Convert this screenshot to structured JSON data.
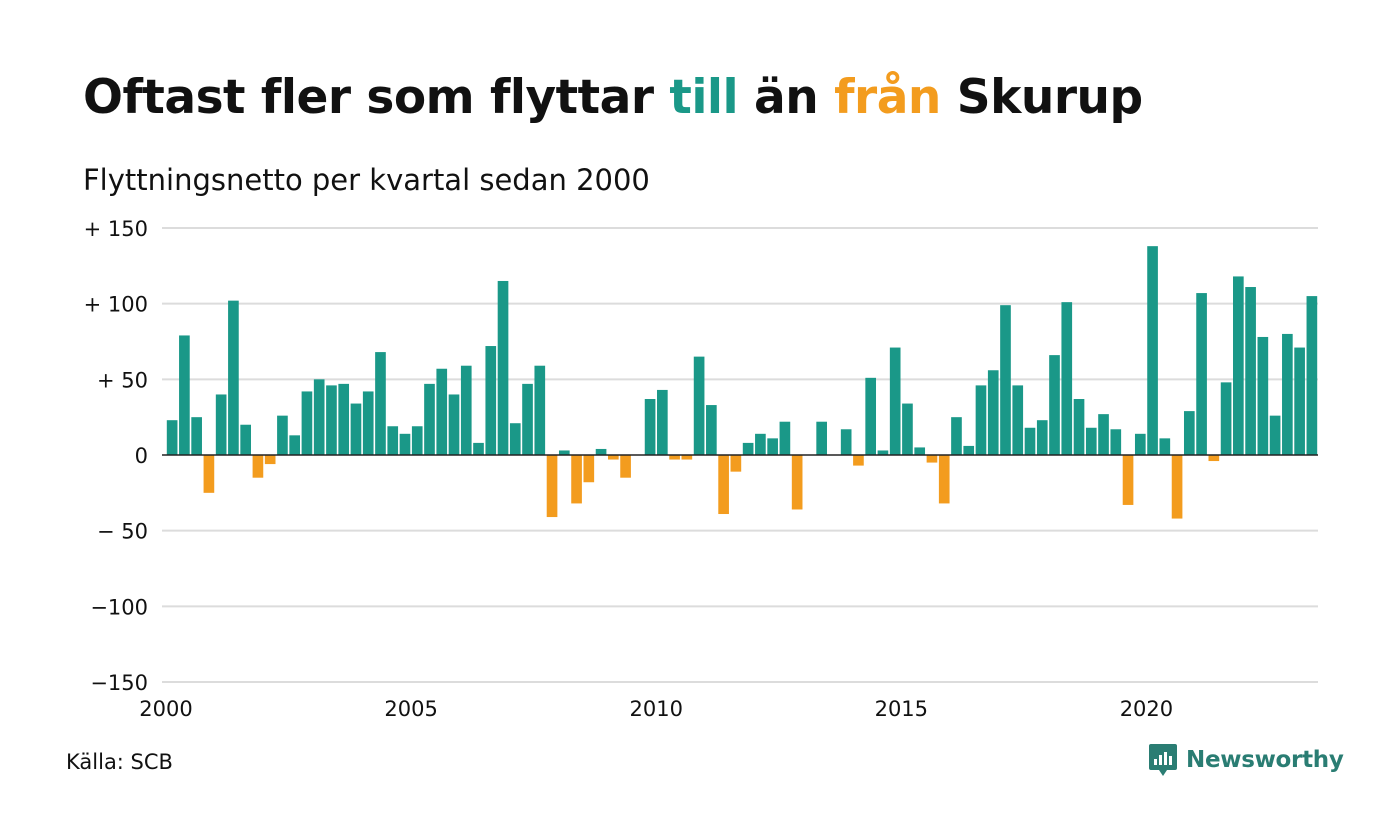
{
  "title": {
    "part1": "Oftast fler som flyttar ",
    "part2": "till",
    "part3": " än ",
    "part4": "från",
    "part5": " Skurup"
  },
  "subtitle": "Flyttningsnetto per kvartal sedan 2000",
  "source": "Källa: SCB",
  "brand": {
    "name": "Newsworthy",
    "icon": "chart-bubble-icon"
  },
  "colors": {
    "positive": "#1a9888",
    "negative": "#f39c1e",
    "grid": "#dcdcdc",
    "zero_line": "#222222",
    "brand": "#2a7d73"
  },
  "chart_data": {
    "type": "bar",
    "title": "Oftast fler som flyttar till än från Skurup",
    "subtitle": "Flyttningsnetto per kvartal sedan 2000",
    "x_start": "2000 Q1",
    "frequency": "quarterly",
    "x_tick_labels": [
      "2000",
      "2005",
      "2010",
      "2015",
      "2020"
    ],
    "y_tick_values": [
      150,
      100,
      50,
      0,
      -50,
      -100,
      -150
    ],
    "y_tick_labels": [
      "+ 150",
      "+ 100",
      "+  50",
      "0",
      "− 50",
      "−100",
      "−150"
    ],
    "ylim": [
      -150,
      150
    ],
    "grid": true,
    "values": [
      23,
      79,
      25,
      -25,
      40,
      102,
      20,
      -15,
      -6,
      26,
      13,
      42,
      50,
      46,
      47,
      34,
      42,
      68,
      19,
      14,
      19,
      47,
      57,
      40,
      59,
      8,
      72,
      115,
      21,
      47,
      59,
      -41,
      3,
      -32,
      -18,
      4,
      -3,
      -15,
      0,
      37,
      43,
      -3,
      -3,
      65,
      33,
      -39,
      -11,
      8,
      14,
      11,
      22,
      -36,
      0,
      22,
      0,
      17,
      -7,
      51,
      3,
      71,
      34,
      5,
      -5,
      -32,
      25,
      6,
      46,
      56,
      99,
      46,
      18,
      23,
      66,
      101,
      37,
      18,
      27,
      17,
      -33,
      14,
      138,
      11,
      -42,
      29,
      107,
      -4,
      48,
      118,
      111,
      78,
      26,
      80,
      71,
      105
    ]
  }
}
